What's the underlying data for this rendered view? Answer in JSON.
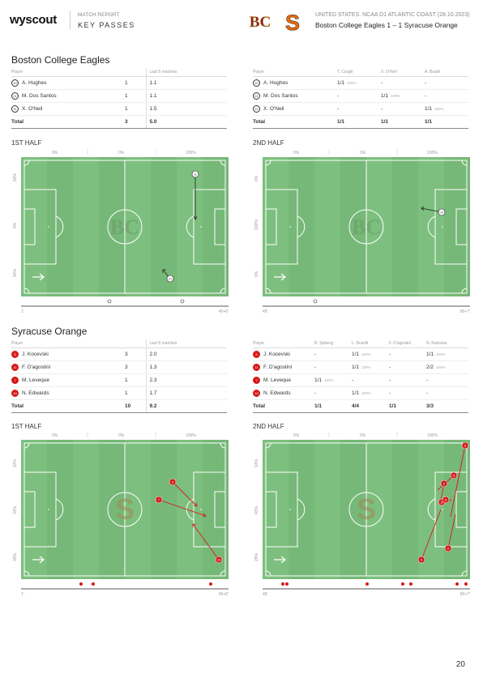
{
  "header": {
    "logo": "wyscout",
    "report_label": "MATCH REPORT",
    "report_title": "KEY PASSES",
    "competition": "UNITED STATES. NCAA D1 ATLANTIC COAST (28.10.2023)",
    "match": "Boston College Eagles 1 – 1 Syracuse Orange"
  },
  "colors": {
    "pitch": "#7dbf7e",
    "pitch_stripe": "#76b877",
    "bc_marker": "#ffffff",
    "syr_marker": "#d61a1a"
  },
  "bc": {
    "name": "Boston College Eagles",
    "left_table": {
      "headers": [
        "Player",
        "",
        "Last 5 matches"
      ],
      "rows": [
        {
          "num": "10",
          "player": "A. Hughes",
          "value": "1",
          "last5": "1.1"
        },
        {
          "num": "21",
          "player": "M. Dos Santos",
          "value": "1",
          "last5": "1.1"
        },
        {
          "num": "11",
          "player": "X. O'Neil",
          "value": "1",
          "last5": "1.5"
        }
      ],
      "total": {
        "label": "Total",
        "value": "3",
        "last5": "5.0"
      }
    },
    "right_table": {
      "headers": [
        "Player",
        "T. Cargill",
        "X. O'Neil",
        "A. Boadi"
      ],
      "rows": [
        {
          "num": "10",
          "player": "A. Hughes",
          "c1": "1/1",
          "p1": "100%",
          "c2": "-",
          "p2": "",
          "c3": "-",
          "p3": ""
        },
        {
          "num": "21",
          "player": "M. Dos Santos",
          "c1": "-",
          "p1": "",
          "c2": "1/1",
          "p2": "100%",
          "c3": "-",
          "p3": ""
        },
        {
          "num": "11",
          "player": "X. O'Neil",
          "c1": "-",
          "p1": "",
          "c2": "-",
          "p2": "",
          "c3": "1/1",
          "p3": "100%"
        }
      ],
      "total": {
        "label": "Total",
        "c1": "1/1",
        "c2": "1/1",
        "c3": "1/1"
      }
    },
    "half1": {
      "label": "1ST HALF",
      "zones": [
        "0%",
        "0%",
        "100%"
      ],
      "side": [
        "50%",
        "0%",
        "50%"
      ],
      "t_start": "1'",
      "t_end": "45+6'"
    },
    "half2": {
      "label": "2ND HALF",
      "zones": [
        "0%",
        "0%",
        "100%"
      ],
      "side": [
        "0%",
        "100%",
        "0%"
      ],
      "t_start": "45'",
      "t_end": "90+7'"
    }
  },
  "syr": {
    "name": "Syracuse Orange",
    "left_table": {
      "headers": [
        "Player",
        "",
        "Last 5 matches"
      ],
      "rows": [
        {
          "num": "8",
          "player": "J. Kocevski",
          "value": "3",
          "last5": "2.0"
        },
        {
          "num": "11",
          "player": "F. D'agostini",
          "value": "3",
          "last5": "1.3"
        },
        {
          "num": "7",
          "player": "M. Leveque",
          "value": "1",
          "last5": "2.3"
        },
        {
          "num": "10",
          "player": "N. Edwards",
          "value": "1",
          "last5": "1.7"
        }
      ],
      "total": {
        "label": "Total",
        "value": "10",
        "last5": "9.2"
      }
    },
    "right_table": {
      "headers": [
        "Player",
        "B. Sjöberg",
        "L. Boselli",
        "F. D'agostini",
        "N. Kalosian"
      ],
      "rows": [
        {
          "num": "8",
          "player": "J. Kocevski",
          "c1": "-",
          "p1": "",
          "c2": "1/1",
          "p2": "100%",
          "c3": "-",
          "p3": "",
          "c4": "1/1",
          "p4": "100%"
        },
        {
          "num": "11",
          "player": "F. D'agostini",
          "c1": "-",
          "p1": "",
          "c2": "1/1",
          "p2": "100%",
          "c3": "-",
          "p3": "",
          "c4": "2/2",
          "p4": "100%"
        },
        {
          "num": "7",
          "player": "M. Leveque",
          "c1": "1/1",
          "p1": "100%",
          "c2": "-",
          "p2": "",
          "c3": "-",
          "p3": "",
          "c4": "-",
          "p4": ""
        },
        {
          "num": "10",
          "player": "N. Edwards",
          "c1": "-",
          "p1": "",
          "c2": "1/1",
          "p2": "100%",
          "c3": "-",
          "p3": "",
          "c4": "-",
          "p4": ""
        }
      ],
      "total": {
        "label": "Total",
        "c1": "1/1",
        "c2": "4/4",
        "c3": "1/1",
        "c4": "3/3"
      }
    },
    "half1": {
      "label": "1ST HALF",
      "zones": [
        "0%",
        "0%",
        "100%"
      ],
      "side": [
        "33%",
        "33%",
        "33%"
      ],
      "t_start": "1'",
      "t_end": "45+6'"
    },
    "half2": {
      "label": "2ND HALF",
      "zones": [
        "0%",
        "0%",
        "100%"
      ],
      "side": [
        "14%",
        "43%",
        "29%"
      ],
      "t_start": "45'",
      "t_end": "90+7'"
    }
  },
  "page_number": "20"
}
